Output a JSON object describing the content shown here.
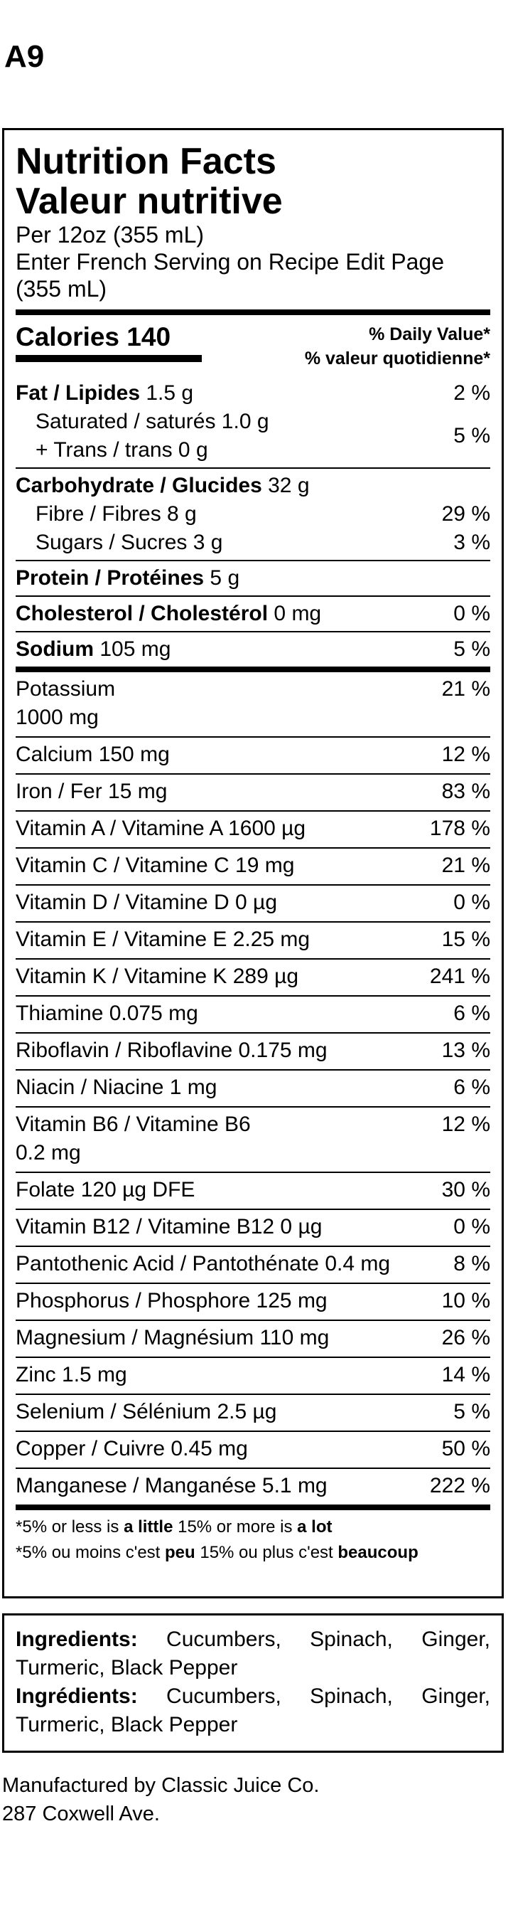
{
  "code": "A9",
  "label": {
    "title_en": "Nutrition Facts",
    "title_fr": "Valeur nutritive",
    "serving_line1": "Per 12oz (355 mL)",
    "serving_line2": "Enter French Serving on Recipe Edit Page",
    "serving_line3": "(355 mL)",
    "calories_label": "Calories 140",
    "dv_en": "% Daily Value*",
    "dv_fr": "% valeur quotidienne*",
    "fat_label": "Fat / Lipides",
    "fat_amount": "1.5 g",
    "fat_dv": "2 %",
    "saturated": "Saturated / saturés 1.0 g",
    "trans": "+ Trans / trans 0 g",
    "sat_trans_dv": "5 %",
    "carb_label": "Carbohydrate / Glucides",
    "carb_amount": "32 g",
    "fibre": "Fibre / Fibres 8 g",
    "fibre_dv": "29 %",
    "sugars": "Sugars / Sucres 3 g",
    "sugars_dv": "3 %",
    "protein_label": "Protein / Protéines",
    "protein_amount": "5 g",
    "chol_label": "Cholesterol / Cholestérol",
    "chol_amount": "0 mg",
    "chol_dv": "0 %",
    "sodium_label": "Sodium",
    "sodium_amount": "105 mg",
    "sodium_dv": "5 %",
    "nutrients": [
      {
        "name": "Potassium",
        "amount": "1000 mg",
        "dv": "21 %"
      },
      {
        "name": "Calcium 150 mg",
        "dv": "12 %"
      },
      {
        "name": "Iron / Fer 15 mg",
        "dv": "83 %"
      },
      {
        "name": "Vitamin A / Vitamine A 1600 µg",
        "dv": "178 %"
      },
      {
        "name": "Vitamin C / Vitamine C 19 mg",
        "dv": "21 %"
      },
      {
        "name": "Vitamin D / Vitamine D 0 µg",
        "dv": "0 %"
      },
      {
        "name": "Vitamin E / Vitamine E 2.25 mg",
        "dv": "15 %"
      },
      {
        "name": "Vitamin K / Vitamine K 289 µg",
        "dv": "241 %"
      },
      {
        "name": "Thiamine 0.075 mg",
        "dv": "6 %"
      },
      {
        "name": "Riboflavin / Riboflavine 0.175 mg",
        "dv": "13 %"
      },
      {
        "name": "Niacin / Niacine 1 mg",
        "dv": "6 %"
      },
      {
        "name": "Vitamin B6 / Vitamine B6",
        "amount": "0.2 mg",
        "dv": "12 %"
      },
      {
        "name": "Folate 120 µg DFE",
        "dv": "30 %"
      },
      {
        "name": "Vitamin B12 / Vitamine B12 0 µg",
        "dv": "0 %"
      },
      {
        "name": "Pantothenic Acid / Pantothénate 0.4 mg",
        "dv": "8 %"
      },
      {
        "name": "Phosphorus / Phosphore 125 mg",
        "dv": "10 %"
      },
      {
        "name": "Magnesium / Magnésium 110 mg",
        "dv": "26 %"
      },
      {
        "name": "Zinc 1.5 mg",
        "dv": "14 %"
      },
      {
        "name": "Selenium / Sélénium 2.5 µg",
        "dv": "5 %"
      },
      {
        "name": "Copper / Cuivre 0.45 mg",
        "dv": "50 %"
      },
      {
        "name": "Manganese / Manganése 5.1 mg",
        "dv": "222 %"
      }
    ],
    "foot_en_a": "*5% or less is ",
    "foot_en_b": "a little",
    "foot_en_c": " 15% or more is ",
    "foot_en_d": "a lot",
    "foot_fr_a": "*5% ou moins c'est ",
    "foot_fr_b": "peu",
    "foot_fr_c": " 15% ou plus c'est ",
    "foot_fr_d": "beaucoup"
  },
  "ingredients": {
    "label_en": "Ingredients:",
    "text_en": " Cucumbers, Spinach, Ginger, Turmeric, Black Pepper",
    "label_fr": "Ingrédients:",
    "text_fr": " Cucumbers, Spinach, Ginger, Turmeric, Black Pepper"
  },
  "manufacturer": {
    "line1": "Manufactured by Classic Juice Co.",
    "line2": "287 Coxwell Ave."
  }
}
